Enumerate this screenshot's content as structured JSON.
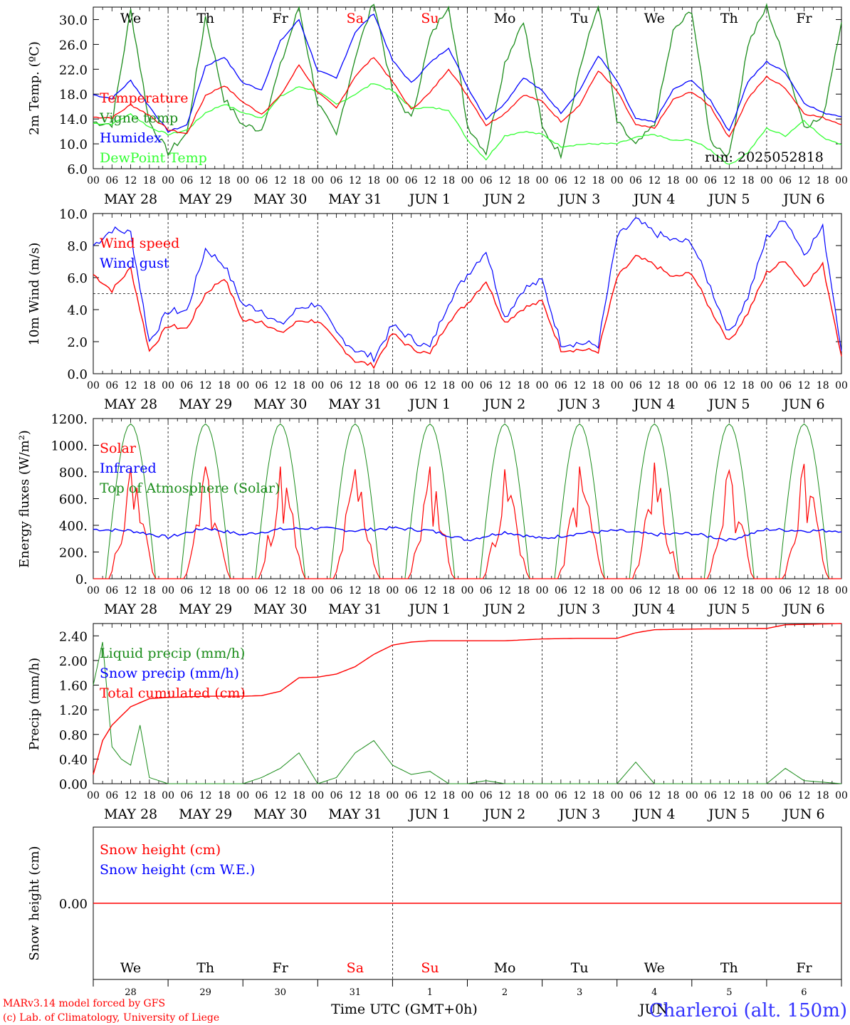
{
  "chart_data": [
    {
      "type": "line",
      "ylabel": "2m Temp. (ºC)",
      "ylim": [
        6,
        32
      ],
      "yticks": [
        "6.0",
        "10.0",
        "14.0",
        "18.0",
        "22.0",
        "26.0",
        "30.0"
      ],
      "run_label": "run: 2025052818",
      "grid": "daily vertical dashed lines",
      "legend_position": "left",
      "series": [
        {
          "name": "Temperature",
          "color": "#ff0000",
          "x_hours": [
            0,
            6,
            12,
            18,
            24,
            30,
            36,
            42,
            48,
            54,
            60,
            66,
            72,
            78,
            84,
            90,
            96,
            102,
            108,
            114,
            120,
            126,
            132,
            138,
            144,
            150,
            156,
            162,
            168,
            174,
            180,
            186,
            192,
            198,
            204,
            210,
            216,
            222,
            228,
            234,
            240
          ],
          "values": [
            14.3,
            14.2,
            16.3,
            14.6,
            12.3,
            11.6,
            17.8,
            19.4,
            16.7,
            14.8,
            17.7,
            22.7,
            18.3,
            15.7,
            20.9,
            24.0,
            20.0,
            15.5,
            18.2,
            22.1,
            17.8,
            13.0,
            14.9,
            17.9,
            16.8,
            13.6,
            16.2,
            21.8,
            18.5,
            13.0,
            12.5,
            17.1,
            18.4,
            16.0,
            11.0,
            17.3,
            20.8,
            19.0,
            14.9,
            14.2,
            13.2
          ]
        },
        {
          "name": "Vigne temp",
          "color": "#1a8c1a",
          "x_hours": [
            0,
            6,
            12,
            18,
            24,
            30,
            36,
            42,
            48,
            54,
            60,
            66,
            72,
            78,
            84,
            90,
            96,
            102,
            108,
            114,
            120,
            126,
            132,
            138,
            144,
            150,
            156,
            162,
            168,
            174,
            180,
            186,
            192,
            198,
            204,
            210,
            216,
            222,
            228,
            234,
            240
          ],
          "values": [
            13.5,
            13.2,
            31.5,
            13.5,
            8.6,
            11.6,
            30.5,
            17.2,
            13.0,
            12.3,
            22.5,
            32.0,
            16.6,
            11.2,
            24.0,
            33.0,
            18.5,
            14.0,
            27.0,
            32.5,
            13.0,
            8.6,
            23.0,
            30.0,
            12.5,
            8.3,
            22.0,
            32.5,
            13.5,
            9.7,
            13.0,
            28.0,
            31.5,
            10.5,
            8.0,
            26.0,
            32.0,
            23.0,
            13.0,
            14.0,
            30.0
          ]
        },
        {
          "name": "Humidex",
          "color": "#0000ff",
          "x_hours": [
            0,
            6,
            12,
            18,
            24,
            30,
            36,
            42,
            48,
            54,
            60,
            66,
            72,
            78,
            84,
            90,
            96,
            102,
            108,
            114,
            120,
            126,
            132,
            138,
            144,
            150,
            156,
            162,
            168,
            174,
            180,
            186,
            192,
            198,
            204,
            210,
            216,
            222,
            228,
            234,
            240
          ],
          "values": [
            17.9,
            17.3,
            20.2,
            16.0,
            12.0,
            13.0,
            22.5,
            24.0,
            19.8,
            18.7,
            26.5,
            30.0,
            21.8,
            20.5,
            28.0,
            31.0,
            23.4,
            19.8,
            23.0,
            25.5,
            19.2,
            14.0,
            16.5,
            20.7,
            18.5,
            15.0,
            18.6,
            24.2,
            20.1,
            14.0,
            13.5,
            18.7,
            20.3,
            17.0,
            12.0,
            20.0,
            23.2,
            21.5,
            16.6,
            15.0,
            14.5
          ]
        },
        {
          "name": "DewPoint Temp",
          "color": "#33ff33",
          "x_hours": [
            0,
            6,
            12,
            18,
            24,
            30,
            36,
            42,
            48,
            54,
            60,
            66,
            72,
            78,
            84,
            90,
            96,
            102,
            108,
            114,
            120,
            126,
            132,
            138,
            144,
            150,
            156,
            162,
            168,
            174,
            180,
            186,
            192,
            198,
            204,
            210,
            216,
            222,
            228,
            234,
            240
          ],
          "values": [
            13.3,
            13.2,
            14.8,
            12.7,
            11.5,
            12.2,
            15.0,
            16.4,
            15.0,
            14.2,
            17.6,
            19.2,
            18.5,
            16.3,
            18.0,
            19.8,
            18.5,
            15.8,
            15.8,
            15.5,
            10.7,
            7.5,
            11.3,
            12.0,
            11.5,
            9.6,
            9.9,
            10.0,
            10.0,
            11.0,
            11.5,
            10.5,
            10.6,
            9.0,
            6.6,
            8.6,
            12.5,
            11.3,
            13.8,
            11.0,
            10.0
          ]
        }
      ]
    },
    {
      "type": "line",
      "ylabel": "10m Wind (m/s)",
      "ylim": [
        0,
        10
      ],
      "yticks": [
        "0.0",
        "2.0",
        "4.0",
        "6.0",
        "8.0",
        "10.0"
      ],
      "reference_line": 5,
      "legend_position": "left",
      "series": [
        {
          "name": "Wind speed",
          "color": "#ff0000",
          "x_hours": [
            0,
            6,
            12,
            18,
            24,
            30,
            36,
            42,
            48,
            54,
            60,
            66,
            72,
            78,
            84,
            90,
            96,
            102,
            108,
            114,
            120,
            126,
            132,
            138,
            144,
            150,
            156,
            162,
            168,
            174,
            180,
            186,
            192,
            198,
            204,
            210,
            216,
            222,
            228,
            234,
            240
          ],
          "values": [
            6.2,
            5.2,
            6.6,
            1.4,
            3.0,
            2.8,
            5.0,
            6.0,
            3.3,
            3.3,
            2.5,
            3.3,
            3.3,
            2.0,
            0.8,
            0.5,
            2.5,
            1.6,
            1.2,
            3.3,
            4.4,
            5.8,
            3.2,
            4.1,
            4.5,
            1.5,
            1.5,
            1.4,
            6.0,
            7.3,
            6.8,
            6.0,
            6.3,
            4.0,
            2.0,
            3.8,
            6.3,
            7.1,
            5.5,
            6.8,
            1.2
          ]
        },
        {
          "name": "Wind gust",
          "color": "#0000ff",
          "x_hours": [
            0,
            6,
            12,
            18,
            24,
            30,
            36,
            42,
            48,
            54,
            60,
            66,
            72,
            78,
            84,
            90,
            96,
            102,
            108,
            114,
            120,
            126,
            132,
            138,
            144,
            150,
            156,
            162,
            168,
            174,
            180,
            186,
            192,
            198,
            204,
            210,
            216,
            222,
            228,
            234,
            240
          ],
          "values": [
            8.0,
            9.0,
            8.8,
            2.0,
            3.9,
            3.9,
            7.8,
            6.8,
            4.3,
            4.0,
            3.0,
            4.1,
            4.4,
            2.5,
            1.5,
            1.0,
            3.0,
            2.2,
            1.6,
            4.5,
            6.2,
            7.7,
            3.5,
            5.3,
            5.8,
            1.9,
            1.9,
            1.8,
            8.5,
            9.6,
            8.8,
            8.3,
            8.2,
            5.4,
            2.5,
            4.8,
            8.5,
            9.7,
            7.5,
            9.1,
            1.6
          ]
        }
      ]
    },
    {
      "type": "line",
      "ylabel": "Energy fluxes (W/m²)",
      "ylim": [
        0,
        1200
      ],
      "yticks": [
        "0.",
        "200.",
        "400.",
        "600.",
        "800.",
        "1000.",
        "1200."
      ],
      "legend_position": "left",
      "series": [
        {
          "name": "Solar",
          "color": "#ff0000",
          "daily_peak": [
            830,
            840,
            840,
            820,
            840,
            820,
            840,
            870,
            810,
            860
          ]
        },
        {
          "name": "Infrared",
          "color": "#0000ff",
          "x_hours": [
            0,
            12,
            24,
            36,
            48,
            60,
            72,
            84,
            96,
            108,
            120,
            132,
            144,
            156,
            168,
            180,
            192,
            204,
            216,
            228,
            240
          ],
          "values": [
            370,
            360,
            310,
            380,
            330,
            370,
            380,
            360,
            380,
            360,
            290,
            350,
            300,
            340,
            360,
            330,
            340,
            290,
            370,
            360,
            360
          ]
        },
        {
          "name": "Top of Atmosphere (Solar)",
          "color": "#1a8c1a",
          "daily_peak": 1160
        }
      ]
    },
    {
      "type": "line",
      "ylabel": "Precip (mm/h)",
      "ylim": [
        0,
        2.6
      ],
      "yticks": [
        "0.00",
        "0.40",
        "0.80",
        "1.20",
        "1.60",
        "2.00",
        "2.40"
      ],
      "legend_position": "left",
      "series": [
        {
          "name": "Liquid precip (mm/h)",
          "color": "#1a8c1a",
          "x_hours": [
            0,
            3,
            6,
            9,
            12,
            15,
            18,
            24,
            36,
            48,
            54,
            60,
            66,
            72,
            78,
            84,
            90,
            96,
            102,
            108,
            114,
            120,
            126,
            132,
            168,
            174,
            180,
            216,
            222,
            228,
            240
          ],
          "values": [
            1.6,
            2.3,
            0.6,
            0.4,
            0.3,
            0.95,
            0.1,
            0.0,
            0.0,
            0.0,
            0.1,
            0.25,
            0.5,
            0.0,
            0.1,
            0.5,
            0.7,
            0.3,
            0.15,
            0.2,
            0.0,
            0.0,
            0.05,
            0.0,
            0.0,
            0.35,
            0.0,
            0.0,
            0.25,
            0.05,
            0.0
          ]
        },
        {
          "name": "Snow precip (mm/h)",
          "color": "#0000ff",
          "values": [
            0
          ]
        },
        {
          "name": "Total cumulated (cm)",
          "color": "#ff0000",
          "x_hours": [
            0,
            3,
            6,
            12,
            18,
            24,
            36,
            48,
            54,
            60,
            66,
            72,
            78,
            84,
            90,
            96,
            102,
            108,
            120,
            132,
            144,
            156,
            168,
            174,
            180,
            192,
            216,
            222,
            240
          ],
          "values": [
            0.15,
            0.7,
            0.95,
            1.25,
            1.38,
            1.4,
            1.42,
            1.42,
            1.43,
            1.5,
            1.72,
            1.73,
            1.78,
            1.9,
            2.1,
            2.25,
            2.3,
            2.32,
            2.32,
            2.32,
            2.35,
            2.36,
            2.36,
            2.45,
            2.5,
            2.51,
            2.52,
            2.58,
            2.6
          ]
        }
      ]
    },
    {
      "type": "line",
      "ylabel": "Snow height (cm)",
      "yticks": [
        "0.00"
      ],
      "legend_position": "left",
      "series": [
        {
          "name": "Snow height (cm)",
          "color": "#ff0000",
          "values": [
            0
          ]
        },
        {
          "name": "Snow height (cm W.E.)",
          "color": "#0000ff",
          "values": [
            0
          ]
        }
      ]
    }
  ],
  "axis": {
    "hour_ticks": [
      "00",
      "06",
      "12",
      "18"
    ],
    "final_hour": "00",
    "dates": [
      "MAY 28",
      "MAY 29",
      "MAY 30",
      "MAY 31",
      "JUN  1",
      "JUN  2",
      "JUN  3",
      "JUN  4",
      "JUN  5",
      "JUN  6"
    ],
    "day_names": [
      "We",
      "Th",
      "Fr",
      "Sa",
      "Su",
      "Mo",
      "Tu",
      "We",
      "Th",
      "Fr"
    ],
    "day_numbers": [
      "28",
      "29",
      "30",
      "31",
      "1",
      "2",
      "3",
      "4",
      "5",
      "6"
    ],
    "weekend_color": "#ff0000",
    "month_mark": "JUN",
    "xlabel": "Time UTC (GMT+0h)"
  },
  "footer": {
    "model_line": "MARv3.14 model forced by GFS",
    "lab_line": "(c) Lab. of Climatology, University of Liege",
    "station": "Charleroi (alt. 150m)"
  }
}
